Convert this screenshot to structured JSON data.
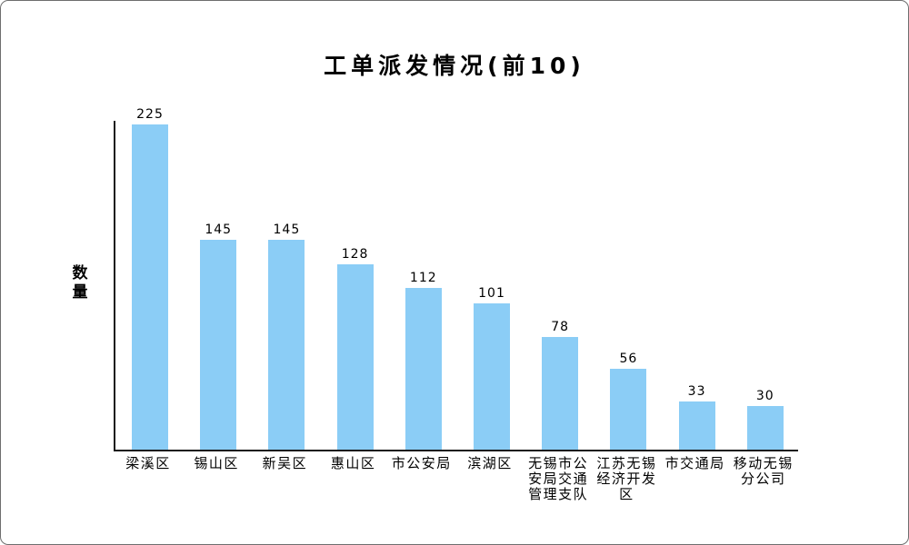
{
  "chart_data": {
    "type": "bar",
    "title": "工单派发情况(前10)",
    "ylabel": "数量",
    "xlabel": "",
    "categories": [
      "梁溪区",
      "锡山区",
      "新吴区",
      "惠山区",
      "市公安局",
      "滨湖区",
      "无锡市公安局交通管理支队",
      "江苏无锡经济开发区",
      "市交通局",
      "移动无锡分公司"
    ],
    "values": [
      225,
      145,
      145,
      128,
      112,
      101,
      78,
      56,
      33,
      30
    ],
    "ylim": [
      0,
      225
    ],
    "grid": false,
    "legend": null,
    "value_labels_shown": true,
    "bar_color": "#8BCDF6",
    "axis_color": "#1a1a1a",
    "text_color": "#000000"
  }
}
